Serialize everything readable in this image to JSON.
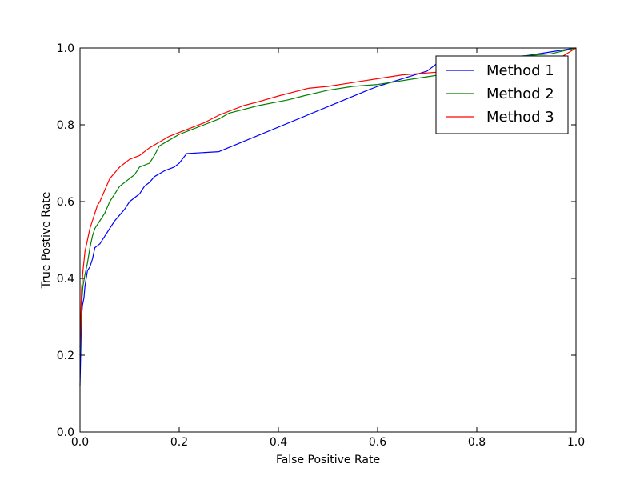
{
  "chart_data": {
    "type": "line",
    "title": "",
    "xlabel": "False Positive Rate",
    "ylabel": "True Postive Rate",
    "xlim": [
      0.0,
      1.0
    ],
    "ylim": [
      0.0,
      1.0
    ],
    "x_ticks": [
      "0.0",
      "0.2",
      "0.4",
      "0.6",
      "0.8",
      "1.0"
    ],
    "y_ticks": [
      "0.0",
      "0.2",
      "0.4",
      "0.6",
      "0.8",
      "1.0"
    ],
    "grid": false,
    "legend_position": "top-right",
    "series": [
      {
        "name": "Method 1",
        "color": "#0000ff",
        "x": [
          0.0,
          0.003,
          0.005,
          0.008,
          0.01,
          0.015,
          0.02,
          0.025,
          0.03,
          0.035,
          0.04,
          0.05,
          0.06,
          0.07,
          0.08,
          0.09,
          0.1,
          0.12,
          0.13,
          0.14,
          0.15,
          0.17,
          0.19,
          0.2,
          0.215,
          0.28,
          0.58,
          0.6,
          0.65,
          0.7,
          0.72,
          0.8,
          0.9,
          1.0
        ],
        "y": [
          0.12,
          0.3,
          0.33,
          0.35,
          0.38,
          0.42,
          0.43,
          0.45,
          0.48,
          0.485,
          0.49,
          0.51,
          0.53,
          0.55,
          0.565,
          0.58,
          0.6,
          0.62,
          0.64,
          0.65,
          0.665,
          0.68,
          0.69,
          0.7,
          0.725,
          0.73,
          0.89,
          0.9,
          0.92,
          0.94,
          0.96,
          0.97,
          0.98,
          1.0
        ]
      },
      {
        "name": "Method 2",
        "color": "#008000",
        "x": [
          0.0,
          0.003,
          0.006,
          0.01,
          0.015,
          0.02,
          0.025,
          0.03,
          0.04,
          0.05,
          0.06,
          0.07,
          0.08,
          0.09,
          0.1,
          0.11,
          0.12,
          0.14,
          0.15,
          0.16,
          0.18,
          0.2,
          0.22,
          0.25,
          0.28,
          0.3,
          0.33,
          0.36,
          0.4,
          0.42,
          0.45,
          0.5,
          0.55,
          0.6,
          0.65,
          0.7,
          0.75,
          0.8,
          0.85,
          0.9,
          0.95,
          1.0
        ],
        "y": [
          0.2,
          0.33,
          0.38,
          0.41,
          0.44,
          0.48,
          0.51,
          0.53,
          0.55,
          0.57,
          0.6,
          0.62,
          0.64,
          0.65,
          0.66,
          0.67,
          0.69,
          0.7,
          0.72,
          0.745,
          0.76,
          0.775,
          0.785,
          0.8,
          0.815,
          0.83,
          0.84,
          0.85,
          0.86,
          0.865,
          0.875,
          0.89,
          0.9,
          0.905,
          0.915,
          0.925,
          0.935,
          0.95,
          0.965,
          0.98,
          0.985,
          1.0
        ]
      },
      {
        "name": "Method 3",
        "color": "#ff0000",
        "x": [
          0.0,
          0.003,
          0.006,
          0.01,
          0.015,
          0.02,
          0.025,
          0.03,
          0.035,
          0.04,
          0.05,
          0.06,
          0.07,
          0.08,
          0.09,
          0.1,
          0.12,
          0.14,
          0.16,
          0.18,
          0.2,
          0.22,
          0.25,
          0.28,
          0.3,
          0.33,
          0.36,
          0.4,
          0.43,
          0.46,
          0.5,
          0.55,
          0.6,
          0.65,
          0.7,
          0.75,
          0.8,
          0.9,
          0.95,
          1.0
        ],
        "y": [
          0.22,
          0.37,
          0.42,
          0.47,
          0.5,
          0.53,
          0.55,
          0.57,
          0.59,
          0.6,
          0.63,
          0.66,
          0.675,
          0.69,
          0.7,
          0.71,
          0.72,
          0.74,
          0.755,
          0.77,
          0.78,
          0.79,
          0.805,
          0.825,
          0.835,
          0.85,
          0.86,
          0.875,
          0.885,
          0.895,
          0.9,
          0.91,
          0.92,
          0.93,
          0.935,
          0.94,
          0.945,
          0.95,
          0.96,
          1.0
        ]
      }
    ]
  }
}
